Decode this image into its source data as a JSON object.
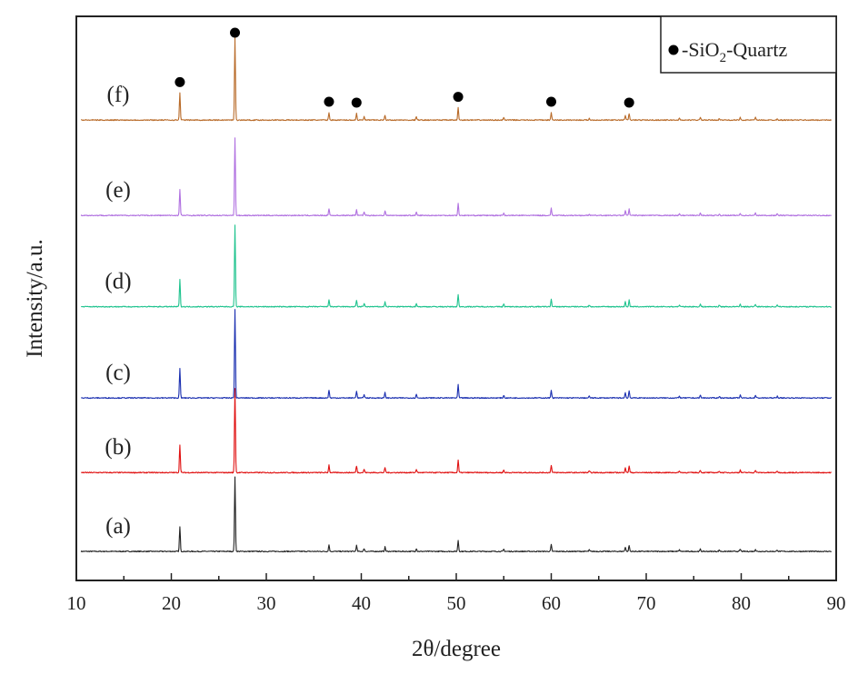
{
  "chart_data": {
    "type": "line",
    "title": "",
    "xlabel": "2θ/degree",
    "ylabel": "Intensity/a.u.",
    "xlim": [
      10,
      90
    ],
    "x_ticks": [
      10,
      20,
      30,
      40,
      50,
      60,
      70,
      80,
      90
    ],
    "x_tick_labels": [
      "10",
      "20",
      "30",
      "40",
      "50",
      "60",
      "70",
      "80",
      "90"
    ],
    "y_ticks_visible": false,
    "legend": {
      "placement": "top-right",
      "marker": "filled-circle",
      "text_parts": [
        "-SiO",
        "2",
        "-Quartz"
      ]
    },
    "peaks": [
      {
        "x": 20.9,
        "height": 0.33
      },
      {
        "x": 26.7,
        "height": 1.0
      },
      {
        "x": 36.6,
        "height": 0.09
      },
      {
        "x": 39.5,
        "height": 0.08
      },
      {
        "x": 40.3,
        "height": 0.04
      },
      {
        "x": 42.5,
        "height": 0.06
      },
      {
        "x": 45.8,
        "height": 0.04
      },
      {
        "x": 50.2,
        "height": 0.15
      },
      {
        "x": 55.0,
        "height": 0.03
      },
      {
        "x": 60.0,
        "height": 0.09
      },
      {
        "x": 64.0,
        "height": 0.02
      },
      {
        "x": 67.8,
        "height": 0.06
      },
      {
        "x": 68.2,
        "height": 0.08
      },
      {
        "x": 73.5,
        "height": 0.02
      },
      {
        "x": 75.7,
        "height": 0.03
      },
      {
        "x": 77.7,
        "height": 0.02
      },
      {
        "x": 79.9,
        "height": 0.03
      },
      {
        "x": 81.5,
        "height": 0.03
      },
      {
        "x": 83.8,
        "height": 0.02
      }
    ],
    "quartz_markers": [
      20.9,
      26.7,
      36.6,
      39.5,
      50.2,
      60.0,
      68.2
    ],
    "series": [
      {
        "name": "(a)",
        "label": "(a)",
        "color": "#222222",
        "baseline": 0.0,
        "scale": 0.95
      },
      {
        "name": "(b)",
        "label": "(b)",
        "color": "#e01010",
        "baseline": 0.95,
        "scale": 1.08
      },
      {
        "name": "(c)",
        "label": "(c)",
        "color": "#1a2fb0",
        "baseline": 1.85,
        "scale": 1.13
      },
      {
        "name": "(d)",
        "label": "(d)",
        "color": "#1fc38e",
        "baseline": 2.95,
        "scale": 1.05
      },
      {
        "name": "(e)",
        "label": "(e)",
        "color": "#b070e0",
        "baseline": 4.05,
        "scale": 1.0
      },
      {
        "name": "(f)",
        "label": "(f)",
        "color": "#b86a28",
        "baseline": 5.2,
        "scale": 1.05
      }
    ],
    "ylim": [
      -0.35,
      6.45
    ]
  }
}
